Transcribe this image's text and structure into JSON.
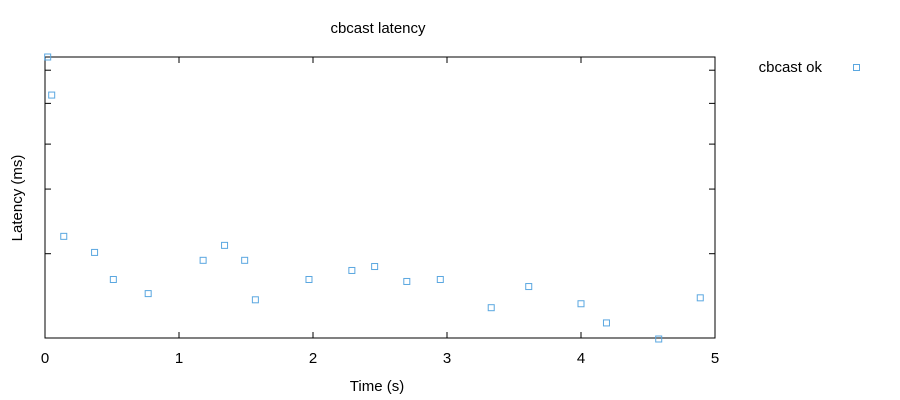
{
  "chart_data": {
    "type": "scatter",
    "title": "cbcast latency",
    "xlabel": "Time (s)",
    "ylabel": "Latency (ms)",
    "xlim": [
      0,
      5
    ],
    "x_ticks": [
      "0",
      "1",
      "2",
      "3",
      "4",
      "5"
    ],
    "y_tick_labels_shown": false,
    "grid": false,
    "legend_position": "top-right, outside plot",
    "marker": "open-square",
    "colors": {
      "series": "#5aa7e0",
      "axis": "#000000"
    },
    "series": [
      {
        "name": "cbcast ok",
        "points": [
          [
            0.02,
            1.0
          ],
          [
            0.05,
            0.865
          ],
          [
            0.14,
            0.364
          ],
          [
            0.37,
            0.307
          ],
          [
            0.51,
            0.211
          ],
          [
            0.77,
            0.161
          ],
          [
            1.18,
            0.279
          ],
          [
            1.34,
            0.332
          ],
          [
            1.49,
            0.279
          ],
          [
            1.57,
            0.139
          ],
          [
            1.97,
            0.211
          ],
          [
            2.29,
            0.243
          ],
          [
            2.46,
            0.257
          ],
          [
            2.7,
            0.204
          ],
          [
            2.95,
            0.211
          ],
          [
            3.33,
            0.111
          ],
          [
            3.61,
            0.186
          ],
          [
            4.0,
            0.125
          ],
          [
            4.19,
            0.057
          ],
          [
            4.58,
            0.0
          ],
          [
            4.89,
            0.146
          ]
        ]
      }
    ]
  }
}
